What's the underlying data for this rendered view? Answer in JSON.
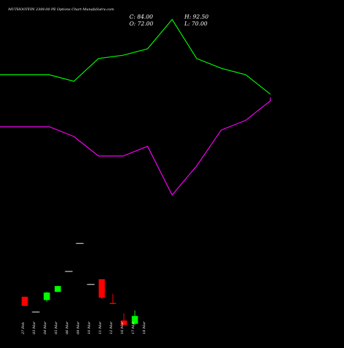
{
  "header": {
    "title": "MUTHOOTFIN 2300.00 PE Options  Chart MunafaSutra.com",
    "close": "C: 84.00",
    "open": "O: 72.00",
    "high": "H: 92.50",
    "low": "L: 70.00"
  },
  "colors": {
    "background": "#000000",
    "upper_band": "#00ff00",
    "lower_band": "#ff00ff",
    "bull": "#00ff00",
    "bear": "#ff0000",
    "neutral": "#d0d0d0",
    "text": "#ffffff"
  },
  "chart_data": {
    "type": "candlestick",
    "categories": [
      "27 Feb",
      "03 Mar",
      "04 Mar",
      "05 Mar",
      "06 Mar",
      "09 Mar",
      "10 Mar",
      "11 Mar",
      "12 Mar",
      "16 Mar",
      "17 Mar",
      "18 Mar"
    ],
    "ohlc": [
      {
        "date": "27 Feb",
        "open": 113.5,
        "high": 113.5,
        "low": 99.5,
        "close": 99.5
      },
      {
        "date": "03 Mar",
        "open": 90.0,
        "high": 90.0,
        "low": 90.0,
        "close": 90.0
      },
      {
        "date": "04 Mar",
        "open": 108.5,
        "high": 121.0,
        "low": 106.0,
        "close": 120.0
      },
      {
        "date": "05 Mar",
        "open": 121.0,
        "high": 130.5,
        "low": 121.0,
        "close": 130.0
      },
      {
        "date": "06 Mar",
        "open": 152.5,
        "high": 152.5,
        "low": 152.5,
        "close": 152.5
      },
      {
        "date": "09 Mar",
        "open": 195.5,
        "high": 195.5,
        "low": 195.5,
        "close": 195.5
      },
      {
        "date": "10 Mar",
        "open": 132.5,
        "high": 132.5,
        "low": 132.5,
        "close": 132.5
      },
      {
        "date": "11 Mar",
        "open": 140.5,
        "high": 140.5,
        "low": 110.0,
        "close": 112.0
      },
      {
        "date": "12 Mar",
        "open": 104.0,
        "high": 118.0,
        "low": 103.0,
        "close": 103.0
      },
      {
        "date": "16 Mar",
        "open": 77.0,
        "high": 88.0,
        "low": 70.0,
        "close": 70.0
      },
      {
        "date": "17 Mar",
        "open": 72.0,
        "high": 92.5,
        "low": 70.0,
        "close": 84.0
      }
    ],
    "upper_band": [
      455,
      455,
      445,
      480,
      485,
      495,
      540,
      480,
      465,
      455,
      425,
      425
    ],
    "lower_band": [
      375,
      375,
      360,
      330,
      330,
      345,
      270,
      315,
      370,
      385,
      415,
      420
    ],
    "price_range": [
      40,
      570
    ]
  }
}
